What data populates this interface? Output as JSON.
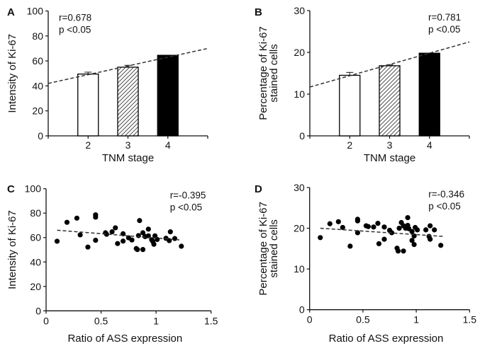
{
  "chart_data": [
    {
      "panel": "A",
      "type": "bar",
      "categories": [
        "2",
        "3",
        "4"
      ],
      "values": [
        49.5,
        55,
        64.5
      ],
      "errors": [
        1.5,
        1.5,
        0
      ],
      "fills": [
        "white",
        "hatched",
        "black"
      ],
      "xlabel": "TNM stage",
      "ylabel": [
        "Intensity of Ki-67"
      ],
      "ylim": [
        0,
        100
      ],
      "yticks": [
        0,
        20,
        40,
        60,
        80,
        100
      ],
      "xlim": [
        1,
        5
      ],
      "trend": [
        [
          1,
          42
        ],
        [
          5,
          70
        ]
      ],
      "annotation": [
        "r=0.678",
        "p <0.05"
      ],
      "annotation_position": "top-left"
    },
    {
      "panel": "B",
      "type": "bar",
      "categories": [
        "2",
        "3",
        "4"
      ],
      "values": [
        14.5,
        16.8,
        19.8
      ],
      "errors": [
        0.7,
        0.2,
        0
      ],
      "fills": [
        "white",
        "hatched",
        "black"
      ],
      "xlabel": "TNM stage",
      "ylabel": [
        "Percentage of Ki-67",
        "stained cells"
      ],
      "ylim": [
        0,
        30
      ],
      "yticks": [
        0,
        10,
        20,
        30
      ],
      "xlim": [
        1,
        5
      ],
      "trend": [
        [
          1,
          11.7
        ],
        [
          5,
          22.5
        ]
      ],
      "annotation": [
        "r=0.781",
        "p <0.05"
      ],
      "annotation_position": "top-right"
    },
    {
      "panel": "C",
      "type": "scatter",
      "xlabel": "Ratio of ASS expression",
      "ylabel": [
        "Intensity of Ki-67"
      ],
      "xlim": [
        0,
        1.5
      ],
      "ylim": [
        0,
        100
      ],
      "xticks": [
        "0",
        "0.5",
        "1",
        "1.5"
      ],
      "yticks": [
        0,
        20,
        40,
        60,
        80,
        100
      ],
      "trend": [
        [
          0.1,
          66
        ],
        [
          1.23,
          58
        ]
      ],
      "annotation": [
        "r=-0.395",
        "p <0.05"
      ],
      "annotation_position": "top-right",
      "points": [
        [
          0.1,
          57
        ],
        [
          0.19,
          72.5
        ],
        [
          0.28,
          75.9
        ],
        [
          0.31,
          62.2
        ],
        [
          0.38,
          52.2
        ],
        [
          0.45,
          76.7
        ],
        [
          0.45,
          78.6
        ],
        [
          0.45,
          57.8
        ],
        [
          0.54,
          63.9
        ],
        [
          0.55,
          62.7
        ],
        [
          0.6,
          64.7
        ],
        [
          0.63,
          68
        ],
        [
          0.65,
          55.1
        ],
        [
          0.7,
          63.1
        ],
        [
          0.7,
          57.1
        ],
        [
          0.75,
          59.8
        ],
        [
          0.78,
          58
        ],
        [
          0.82,
          51
        ],
        [
          0.83,
          50.2
        ],
        [
          0.88,
          50.2
        ],
        [
          0.84,
          61.6
        ],
        [
          0.85,
          73.9
        ],
        [
          0.88,
          63.9
        ],
        [
          0.9,
          60.8
        ],
        [
          0.93,
          66.9
        ],
        [
          0.93,
          61.4
        ],
        [
          0.96,
          58.2
        ],
        [
          0.97,
          56.9
        ],
        [
          0.98,
          54.5
        ],
        [
          0.99,
          61.4
        ],
        [
          1.01,
          58.4
        ],
        [
          1.09,
          59.4
        ],
        [
          1.12,
          57.5
        ],
        [
          1.13,
          64.7
        ],
        [
          1.17,
          59.2
        ],
        [
          1.23,
          52.9
        ]
      ]
    },
    {
      "panel": "D",
      "type": "scatter",
      "xlabel": "Ratio of ASS expression",
      "ylabel": [
        "Percentage of Ki-67",
        "stained cells"
      ],
      "xlim": [
        0,
        1.5
      ],
      "ylim": [
        0,
        30
      ],
      "xticks": [
        "0",
        "0.5",
        "1",
        "1.5"
      ],
      "yticks": [
        0,
        10,
        20,
        30
      ],
      "trend": [
        [
          0.1,
          20
        ],
        [
          1.25,
          18
        ]
      ],
      "annotation": [
        "r=-0.346",
        "p <0.05"
      ],
      "annotation_position": "top-right",
      "points": [
        [
          0.1,
          17.7
        ],
        [
          0.19,
          21.1
        ],
        [
          0.27,
          21.6
        ],
        [
          0.31,
          20.2
        ],
        [
          0.38,
          15.6
        ],
        [
          0.45,
          22.2
        ],
        [
          0.45,
          21.8
        ],
        [
          0.45,
          18.9
        ],
        [
          0.53,
          20.6
        ],
        [
          0.55,
          20.4
        ],
        [
          0.6,
          20.3
        ],
        [
          0.64,
          21.2
        ],
        [
          0.65,
          16.2
        ],
        [
          0.7,
          20.3
        ],
        [
          0.7,
          17.3
        ],
        [
          0.75,
          19.5
        ],
        [
          0.77,
          18.9
        ],
        [
          0.82,
          15.1
        ],
        [
          0.83,
          14.4
        ],
        [
          0.88,
          14.4
        ],
        [
          0.84,
          20.0
        ],
        [
          0.86,
          21.4
        ],
        [
          0.88,
          20.6
        ],
        [
          0.9,
          20.0
        ],
        [
          0.92,
          22.6
        ],
        [
          0.92,
          20.7
        ],
        [
          0.93,
          19.9
        ],
        [
          0.96,
          19.2
        ],
        [
          0.96,
          17.0
        ],
        [
          0.98,
          18.1
        ],
        [
          0.98,
          16.0
        ],
        [
          0.99,
          20.2
        ],
        [
          1.01,
          19.6
        ],
        [
          1.09,
          19.6
        ],
        [
          1.12,
          18.0
        ],
        [
          1.13,
          17.3
        ],
        [
          1.13,
          20.6
        ],
        [
          1.17,
          19.6
        ],
        [
          1.23,
          15.8
        ]
      ]
    }
  ]
}
